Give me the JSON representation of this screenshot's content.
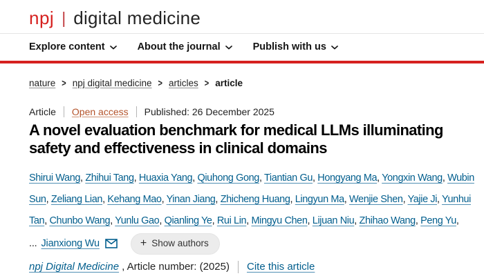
{
  "colors": {
    "brand_red": "#d6211f",
    "link_blue": "#025e8d",
    "open_access_orange": "#b4532a"
  },
  "icons": {
    "chevron_down": "chevron-down",
    "email_envelope": "envelope",
    "plus": "+"
  },
  "header": {
    "logo": {
      "brand": "npj",
      "separator": "|",
      "journal": "digital medicine"
    },
    "nav": [
      {
        "label": "Explore content"
      },
      {
        "label": "About the journal"
      },
      {
        "label": "Publish with us"
      }
    ]
  },
  "breadcrumb": {
    "separator": ">",
    "items": [
      {
        "label": "nature"
      },
      {
        "label": "npj digital medicine"
      },
      {
        "label": "articles"
      },
      {
        "label": "article"
      }
    ]
  },
  "article": {
    "type_label": "Article",
    "access_label": "Open access",
    "published_text": "Published: 26 December 2025",
    "title": "A novel evaluation benchmark for medical LLMs illuminating safety and effectiveness in clinical domains",
    "authors": [
      "Shirui Wang",
      "Zhihui Tang",
      "Huaxia Yang",
      "Qiuhong Gong",
      "Tiantian Gu",
      "Hongyang Ma",
      "Yongxin Wang",
      "Wubin Sun",
      "Zeliang Lian",
      "Kehang Mao",
      "Yinan Jiang",
      "Zhicheng Huang",
      "Lingyun Ma",
      "Wenjie Shen",
      "Yajie Ji",
      "Yunhui Tan",
      "Chunbo Wang",
      "Yunlu Gao",
      "Qianling Ye",
      "Rui Lin",
      "Mingyu Chen",
      "Lijuan Niu",
      "Zhihao Wang",
      "Peng Yu"
    ],
    "authors_ellipsis": "...",
    "corresponding_author": "Jianxiong Wu",
    "show_authors_button": {
      "plus": "+",
      "label": "Show authors"
    },
    "citation": {
      "journal_name": "npj Digital Medicine",
      "article_number_text": ", Article number: (2025)",
      "cite_link_label": "Cite this article"
    }
  }
}
